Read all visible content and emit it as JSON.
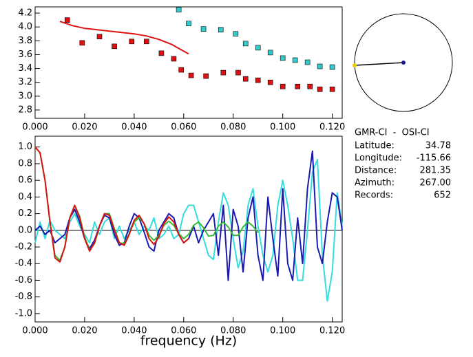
{
  "chart_data": [
    {
      "type": "scatter",
      "xlim": [
        0,
        0.124
      ],
      "ylim": [
        2.68,
        4.29
      ],
      "xticks": [
        {
          "value": 0,
          "label": "0.000"
        },
        {
          "value": 0.02,
          "label": "0.020"
        },
        {
          "value": 0.04,
          "label": "0.040"
        },
        {
          "value": 0.06,
          "label": "0.060"
        },
        {
          "value": 0.08,
          "label": "0.080"
        },
        {
          "value": 0.1,
          "label": "0.100"
        },
        {
          "value": 0.12,
          "label": "0.120"
        }
      ],
      "yticks": [
        4.2,
        {
          "value": 4.0,
          "label": "4.0"
        },
        3.8,
        3.6,
        3.4,
        3.2,
        {
          "value": 3.0,
          "label": "3.0"
        },
        2.8
      ],
      "series": [
        {
          "style": "square",
          "color": "#dd1111",
          "x": [
            0.013,
            0.019,
            0.026,
            0.032,
            0.039,
            0.045,
            0.051,
            0.056,
            0.059,
            0.063,
            0.069,
            0.076,
            0.082,
            0.085,
            0.09,
            0.095,
            0.1,
            0.106,
            0.111,
            0.115,
            0.12
          ],
          "values": [
            4.1,
            3.77,
            3.86,
            3.72,
            3.79,
            3.79,
            3.62,
            3.54,
            3.38,
            3.3,
            3.29,
            3.34,
            3.34,
            3.25,
            3.23,
            3.2,
            3.14,
            3.14,
            3.14,
            3.1,
            3.1
          ]
        },
        {
          "style": "square",
          "color": "#33cccc",
          "x": [
            0.058,
            0.062,
            0.068,
            0.075,
            0.081,
            0.085,
            0.09,
            0.095,
            0.1,
            0.105,
            0.11,
            0.115,
            0.12
          ],
          "values": [
            4.25,
            4.05,
            3.97,
            3.96,
            3.9,
            3.76,
            3.7,
            3.63,
            3.55,
            3.52,
            3.49,
            3.43,
            3.42
          ]
        },
        {
          "style": "line",
          "color": "#dd1111",
          "x": [
            0.01,
            0.015,
            0.02,
            0.03,
            0.04,
            0.045,
            0.05,
            0.055,
            0.06,
            0.062
          ],
          "values": [
            4.08,
            4.02,
            3.98,
            3.94,
            3.9,
            3.87,
            3.82,
            3.75,
            3.65,
            3.61
          ]
        }
      ]
    },
    {
      "type": "line",
      "xlabel": "frequency (Hz)",
      "xlim": [
        0,
        0.124
      ],
      "ylim": [
        -1.1,
        1.13
      ],
      "zero_line": true,
      "xticks": [
        {
          "value": 0,
          "label": "0.000"
        },
        {
          "value": 0.02,
          "label": "0.020"
        },
        {
          "value": 0.04,
          "label": "0.040"
        },
        {
          "value": 0.06,
          "label": "0.060"
        },
        {
          "value": 0.08,
          "label": "0.080"
        },
        {
          "value": 0.1,
          "label": "0.100"
        },
        {
          "value": 0.12,
          "label": "0.120"
        }
      ],
      "yticks": [
        {
          "value": 1.0,
          "label": "1.0"
        },
        0.8,
        0.6,
        0.4,
        0.2,
        {
          "value": 0,
          "label": "0.0"
        },
        -0.2,
        -0.4,
        -0.6,
        -0.8,
        {
          "value": -1.0,
          "label": "-1.0"
        }
      ],
      "x": [
        0,
        0.002,
        0.004,
        0.006,
        0.008,
        0.01,
        0.012,
        0.014,
        0.016,
        0.018,
        0.02,
        0.022,
        0.024,
        0.026,
        0.028,
        0.03,
        0.032,
        0.034,
        0.036,
        0.038,
        0.04,
        0.042,
        0.044,
        0.046,
        0.048,
        0.05,
        0.052,
        0.054,
        0.056,
        0.058,
        0.06,
        0.062,
        0.064,
        0.066,
        0.068,
        0.07,
        0.072,
        0.074,
        0.076,
        0.078,
        0.08,
        0.082,
        0.084,
        0.086,
        0.088,
        0.09,
        0.092,
        0.094,
        0.096,
        0.098,
        0.1,
        0.102,
        0.104,
        0.106,
        0.108,
        0.11,
        0.112,
        0.114,
        0.116,
        0.118,
        0.12,
        0.122,
        0.124
      ],
      "series": [
        {
          "color": "#33dddd",
          "values": [
            -0.15,
            0.1,
            -0.1,
            0.12,
            0.0,
            -0.05,
            -0.1,
            0.1,
            0.2,
            0.05,
            -0.05,
            -0.15,
            0.1,
            -0.05,
            0.1,
            0.15,
            -0.1,
            0.05,
            -0.1,
            0.0,
            0.1,
            -0.05,
            0.05,
            0.0,
            0.15,
            -0.1,
            -0.05,
            0.05,
            -0.1,
            -0.05,
            0.2,
            0.3,
            0.3,
            0.1,
            -0.1,
            -0.3,
            -0.35,
            0.1,
            0.45,
            0.3,
            -0.1,
            -0.45,
            -0.25,
            0.3,
            0.5,
            0.05,
            -0.3,
            -0.5,
            -0.3,
            0.3,
            0.6,
            0.3,
            -0.1,
            -0.6,
            -0.6,
            0.0,
            0.7,
            0.85,
            -0.3,
            -0.85,
            -0.5,
            0.45,
            0.05
          ]
        },
        {
          "color": "#1a1ab0",
          "values": [
            0.0,
            0.05,
            -0.05,
            0.0,
            -0.15,
            -0.1,
            -0.05,
            0.15,
            0.25,
            0.1,
            -0.1,
            -0.22,
            -0.12,
            0.05,
            0.18,
            0.15,
            -0.05,
            -0.18,
            -0.15,
            0.05,
            0.2,
            0.15,
            -0.02,
            -0.2,
            -0.25,
            0.0,
            0.1,
            0.2,
            0.15,
            -0.05,
            -0.15,
            -0.1,
            0.05,
            -0.15,
            0.0,
            0.1,
            0.2,
            -0.3,
            0.3,
            -0.6,
            0.25,
            0.05,
            -0.5,
            0.15,
            0.4,
            -0.3,
            -0.6,
            0.4,
            -0.1,
            -0.55,
            0.5,
            -0.4,
            -0.6,
            0.15,
            -0.4,
            0.5,
            0.95,
            -0.2,
            -0.4,
            0.1,
            0.45,
            0.4,
            0.0
          ]
        },
        {
          "color": "#33bb33",
          "values": [
            1.0,
            0.93,
            0.6,
            0.1,
            -0.3,
            -0.36,
            -0.2,
            0.15,
            0.3,
            0.17,
            -0.08,
            -0.24,
            -0.16,
            0.05,
            0.2,
            0.2,
            0.02,
            -0.15,
            -0.16,
            -0.04,
            0.1,
            0.15,
            0.08,
            -0.06,
            -0.12,
            -0.06,
            0.06,
            0.11,
            0.06,
            -0.04,
            -0.1,
            -0.05,
            0.06,
            0.1,
            0.03,
            -0.07,
            -0.06,
            0.05,
            0.1,
            0.04,
            -0.06,
            -0.06,
            0.04,
            0.1,
            0.05,
            -0.03,
            null,
            null,
            null,
            null,
            null,
            null,
            null,
            null,
            null,
            null,
            null,
            null,
            null,
            null,
            null,
            null,
            null
          ]
        },
        {
          "color": "#dd1111",
          "values": [
            1.0,
            0.93,
            0.6,
            0.1,
            -0.33,
            -0.38,
            -0.2,
            0.15,
            0.3,
            0.15,
            -0.1,
            -0.25,
            -0.15,
            0.05,
            0.2,
            0.18,
            0.0,
            -0.15,
            -0.18,
            -0.05,
            0.12,
            0.18,
            0.08,
            -0.1,
            -0.17,
            -0.08,
            0.08,
            0.16,
            0.1,
            -0.05,
            -0.15,
            -0.1,
            null,
            null,
            null,
            null,
            null,
            null,
            null,
            null,
            null,
            null,
            null,
            null,
            null,
            null,
            null,
            null,
            null,
            null,
            null,
            null,
            null,
            null,
            null,
            null,
            null,
            null,
            null,
            null,
            null,
            null,
            null
          ]
        }
      ]
    }
  ],
  "info": {
    "title": "GMR-CI  -  OSI-CI",
    "rows": [
      [
        "Latitude:",
        "34.78"
      ],
      [
        "Longitude:",
        "-115.66"
      ],
      [
        "Distance:",
        "281.35"
      ],
      [
        "Azimuth:",
        "267.00"
      ],
      [
        "Records:",
        "652"
      ]
    ]
  }
}
